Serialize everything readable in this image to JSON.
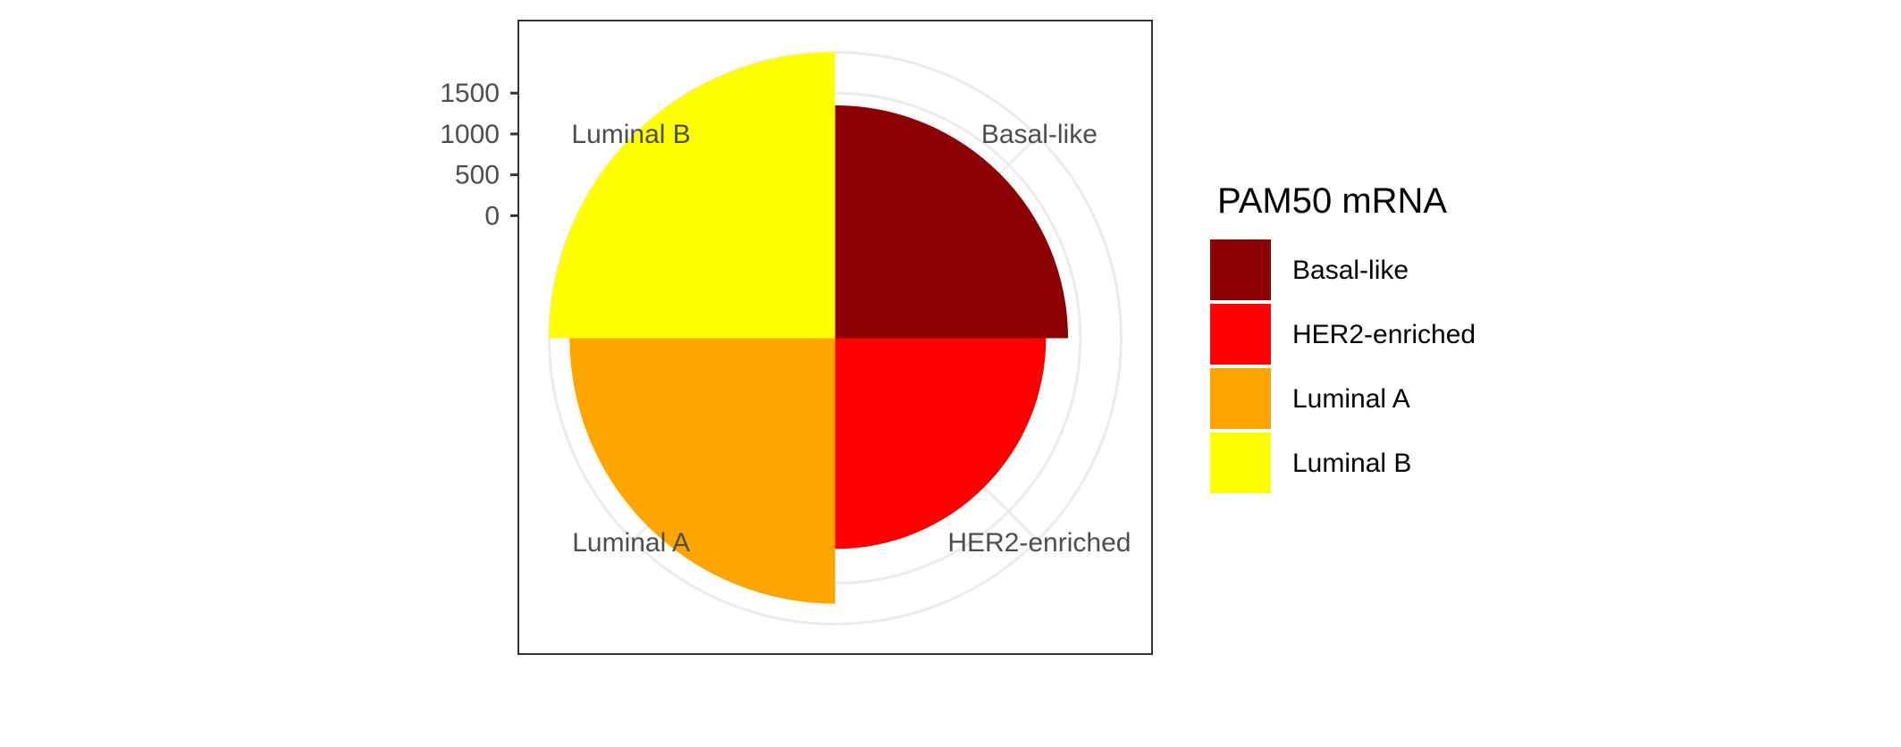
{
  "chart_data": {
    "type": "bar",
    "coord": "polar",
    "categories": [
      "Basal-like",
      "HER2-enriched",
      "Luminal A",
      "Luminal B"
    ],
    "values": [
      1350,
      1080,
      1750,
      2000
    ],
    "colors": [
      "#8B0000",
      "#FF0000",
      "#FFA500",
      "#FFFF00"
    ],
    "y_ticks": [
      0,
      500,
      1000,
      1500
    ],
    "y_tick_labels": [
      "0",
      "500",
      "1000",
      "1500"
    ],
    "ylim": [
      -1500,
      2000
    ],
    "grid": true,
    "legend": {
      "title": "PAM50 mRNA",
      "position": "right",
      "items": [
        "Basal-like",
        "HER2-enriched",
        "Luminal A",
        "Luminal B"
      ]
    }
  }
}
